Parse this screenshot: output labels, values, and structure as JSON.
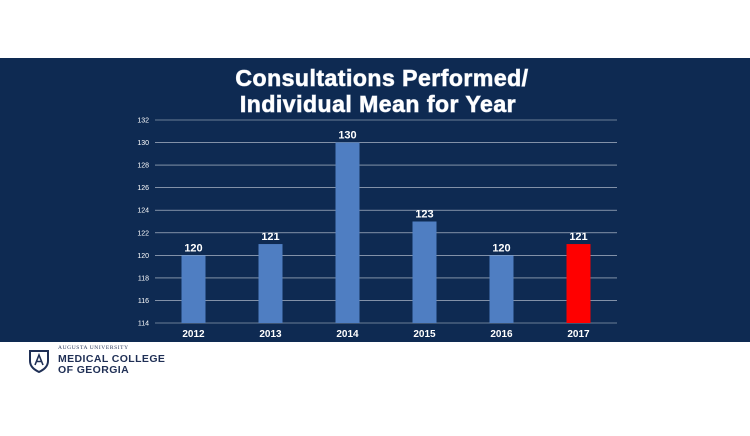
{
  "chart_data": {
    "type": "bar",
    "title_lines": [
      "Consultations Performed/",
      "Individual Mean for Year"
    ],
    "categories": [
      "2012",
      "2013",
      "2014",
      "2015",
      "2016",
      "2017"
    ],
    "values": [
      120,
      121,
      130,
      123,
      120,
      121
    ],
    "data_labels": [
      "120",
      "121",
      "130",
      "123",
      "120",
      "121"
    ],
    "ylim": [
      114,
      132
    ],
    "yticks": [
      "114",
      "116",
      "118",
      "120",
      "122",
      "124",
      "126",
      "128",
      "130",
      "132"
    ],
    "xlabel": "",
    "ylabel": "",
    "grid": true,
    "legend": "none",
    "colors": {
      "default_bar": "#4f7ec2",
      "highlight_bar": "#ff0000",
      "highlight_index": 5,
      "background": "#0e2a52",
      "text": "#ffffff"
    }
  },
  "footer": {
    "university": "AUGUSTA UNIVERSITY",
    "college_line1": "MEDICAL COLLEGE",
    "college_line2": "OF GEORGIA",
    "logo_icon": "shield-icon"
  }
}
